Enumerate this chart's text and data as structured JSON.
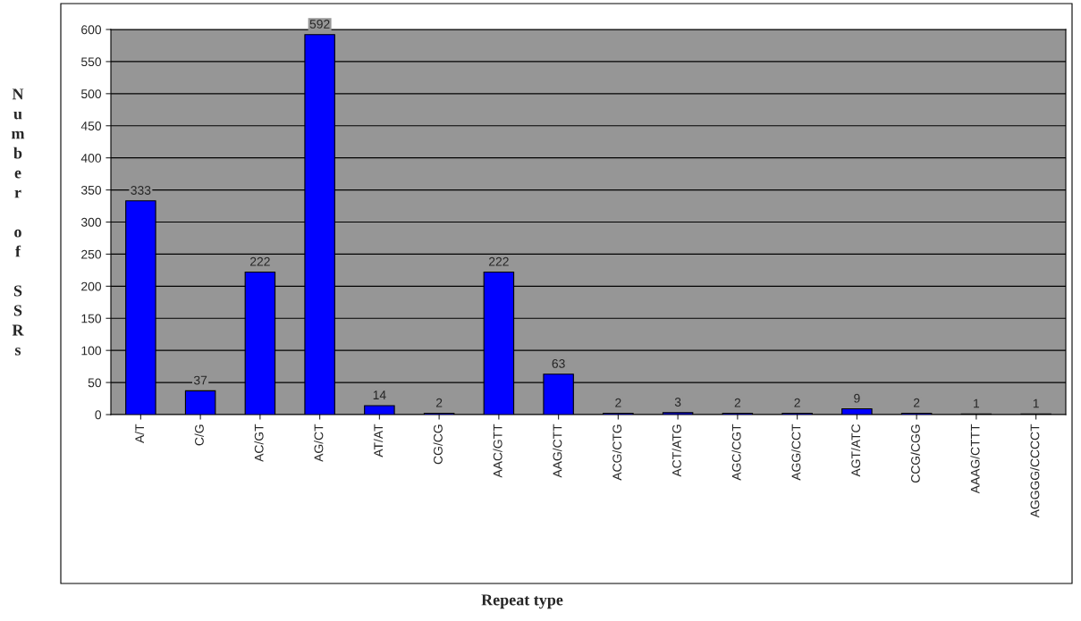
{
  "chart_data": {
    "type": "bar",
    "xlabel": "Repeat type",
    "ylabel": "Number of SSRs",
    "categories": [
      "A/T",
      "C/G",
      "AC/GT",
      "AG/CT",
      "AT/AT",
      "CG/CG",
      "AAC/GTT",
      "AAG/CTT",
      "ACG/CTG",
      "ACT/ATG",
      "AGC/CGT",
      "AGG/CCT",
      "AGT/ATC",
      "CCG/CGG",
      "AAAG/CTTT",
      "AGGGG/CCCCT"
    ],
    "values": [
      333,
      37,
      222,
      592,
      14,
      2,
      222,
      63,
      2,
      3,
      2,
      2,
      9,
      2,
      1,
      1
    ],
    "color": "#0000ff",
    "ylim": [
      0,
      600
    ],
    "yticks": [
      0,
      50,
      100,
      150,
      200,
      250,
      300,
      350,
      400,
      450,
      500,
      550,
      600
    ],
    "grid": "y",
    "data_labels": true,
    "legend": false
  }
}
